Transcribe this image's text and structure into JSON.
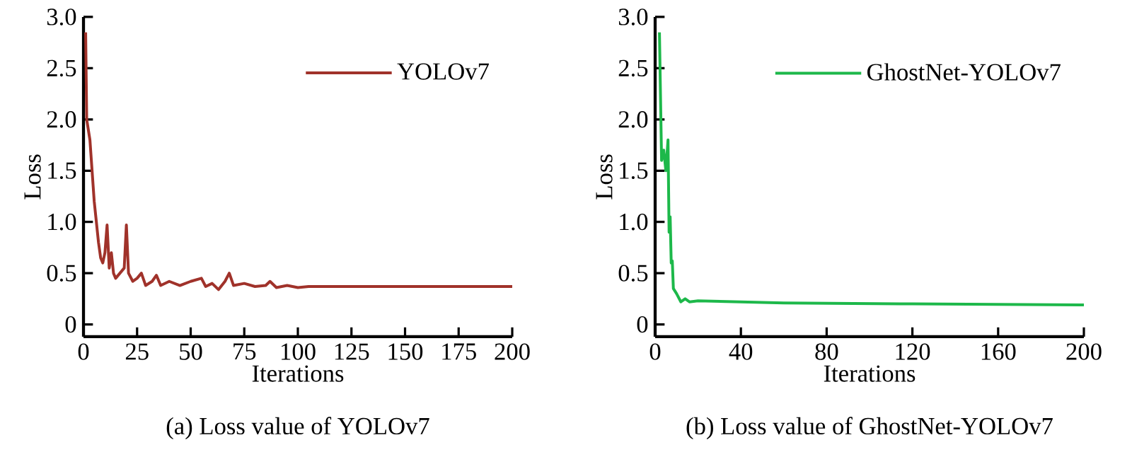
{
  "chart_data": [
    {
      "type": "line",
      "xlabel": "Iterations",
      "ylabel": "Loss",
      "annotations": [
        "(a) Loss value of YOLOv7"
      ],
      "legend": "top right",
      "marker": "none",
      "line_style": "solid",
      "xlim": [
        0,
        200
      ],
      "ylim": [
        -0.12,
        3.0
      ],
      "xticks": [
        0,
        25,
        50,
        75,
        100,
        125,
        150,
        175,
        200
      ],
      "yticks": [
        0,
        0.5,
        {
          "value": 1,
          "label": "1.0"
        },
        1.5,
        {
          "value": 2,
          "label": "2.0"
        },
        2.5,
        {
          "value": 3,
          "label": "3.0"
        }
      ],
      "series": [
        {
          "name": "YOLOv7",
          "color": "#a0322a",
          "x": [
            1,
            1.5,
            3,
            4,
            5,
            6,
            7,
            8,
            9,
            10,
            11,
            12,
            13,
            14,
            15,
            17,
            19,
            20,
            21,
            23,
            25,
            27,
            29,
            32,
            34,
            36,
            40,
            45,
            50,
            55,
            57,
            60,
            63,
            66,
            68,
            70,
            75,
            80,
            85,
            87,
            90,
            95,
            100,
            105,
            110,
            200
          ],
          "values": [
            2.85,
            2.0,
            1.8,
            1.5,
            1.2,
            1.0,
            0.8,
            0.65,
            0.6,
            0.7,
            0.97,
            0.55,
            0.7,
            0.5,
            0.45,
            0.5,
            0.55,
            0.97,
            0.5,
            0.42,
            0.45,
            0.5,
            0.38,
            0.42,
            0.48,
            0.38,
            0.42,
            0.38,
            0.42,
            0.45,
            0.37,
            0.4,
            0.34,
            0.42,
            0.5,
            0.38,
            0.4,
            0.37,
            0.38,
            0.42,
            0.36,
            0.38,
            0.36,
            0.37,
            0.37,
            0.37
          ]
        }
      ]
    },
    {
      "type": "line",
      "xlabel": "Iterations",
      "ylabel": "Loss",
      "annotations": [
        "(b) Loss value of GhostNet-YOLOv7"
      ],
      "legend": "top right",
      "marker": "none",
      "line_style": "solid",
      "xlim": [
        0,
        200
      ],
      "ylim": [
        -0.12,
        3.0
      ],
      "xticks": [
        0,
        40,
        80,
        120,
        160,
        200
      ],
      "yticks": [
        0,
        0.5,
        {
          "value": 1,
          "label": "1.0"
        },
        1.5,
        {
          "value": 2,
          "label": "2.0"
        },
        2.5,
        {
          "value": 3,
          "label": "3.0"
        }
      ],
      "series": [
        {
          "name": "GhostNet-YOLOv7",
          "color": "#1db84a",
          "x": [
            2,
            3,
            4,
            5,
            6,
            6.5,
            7,
            7.5,
            8,
            8.5,
            10,
            12,
            14,
            16,
            20,
            40,
            60,
            120,
            200
          ],
          "values": [
            2.85,
            1.6,
            1.7,
            1.5,
            1.8,
            0.9,
            1.05,
            0.6,
            0.62,
            0.35,
            0.3,
            0.22,
            0.25,
            0.22,
            0.23,
            0.22,
            0.21,
            0.2,
            0.19
          ]
        }
      ]
    }
  ]
}
